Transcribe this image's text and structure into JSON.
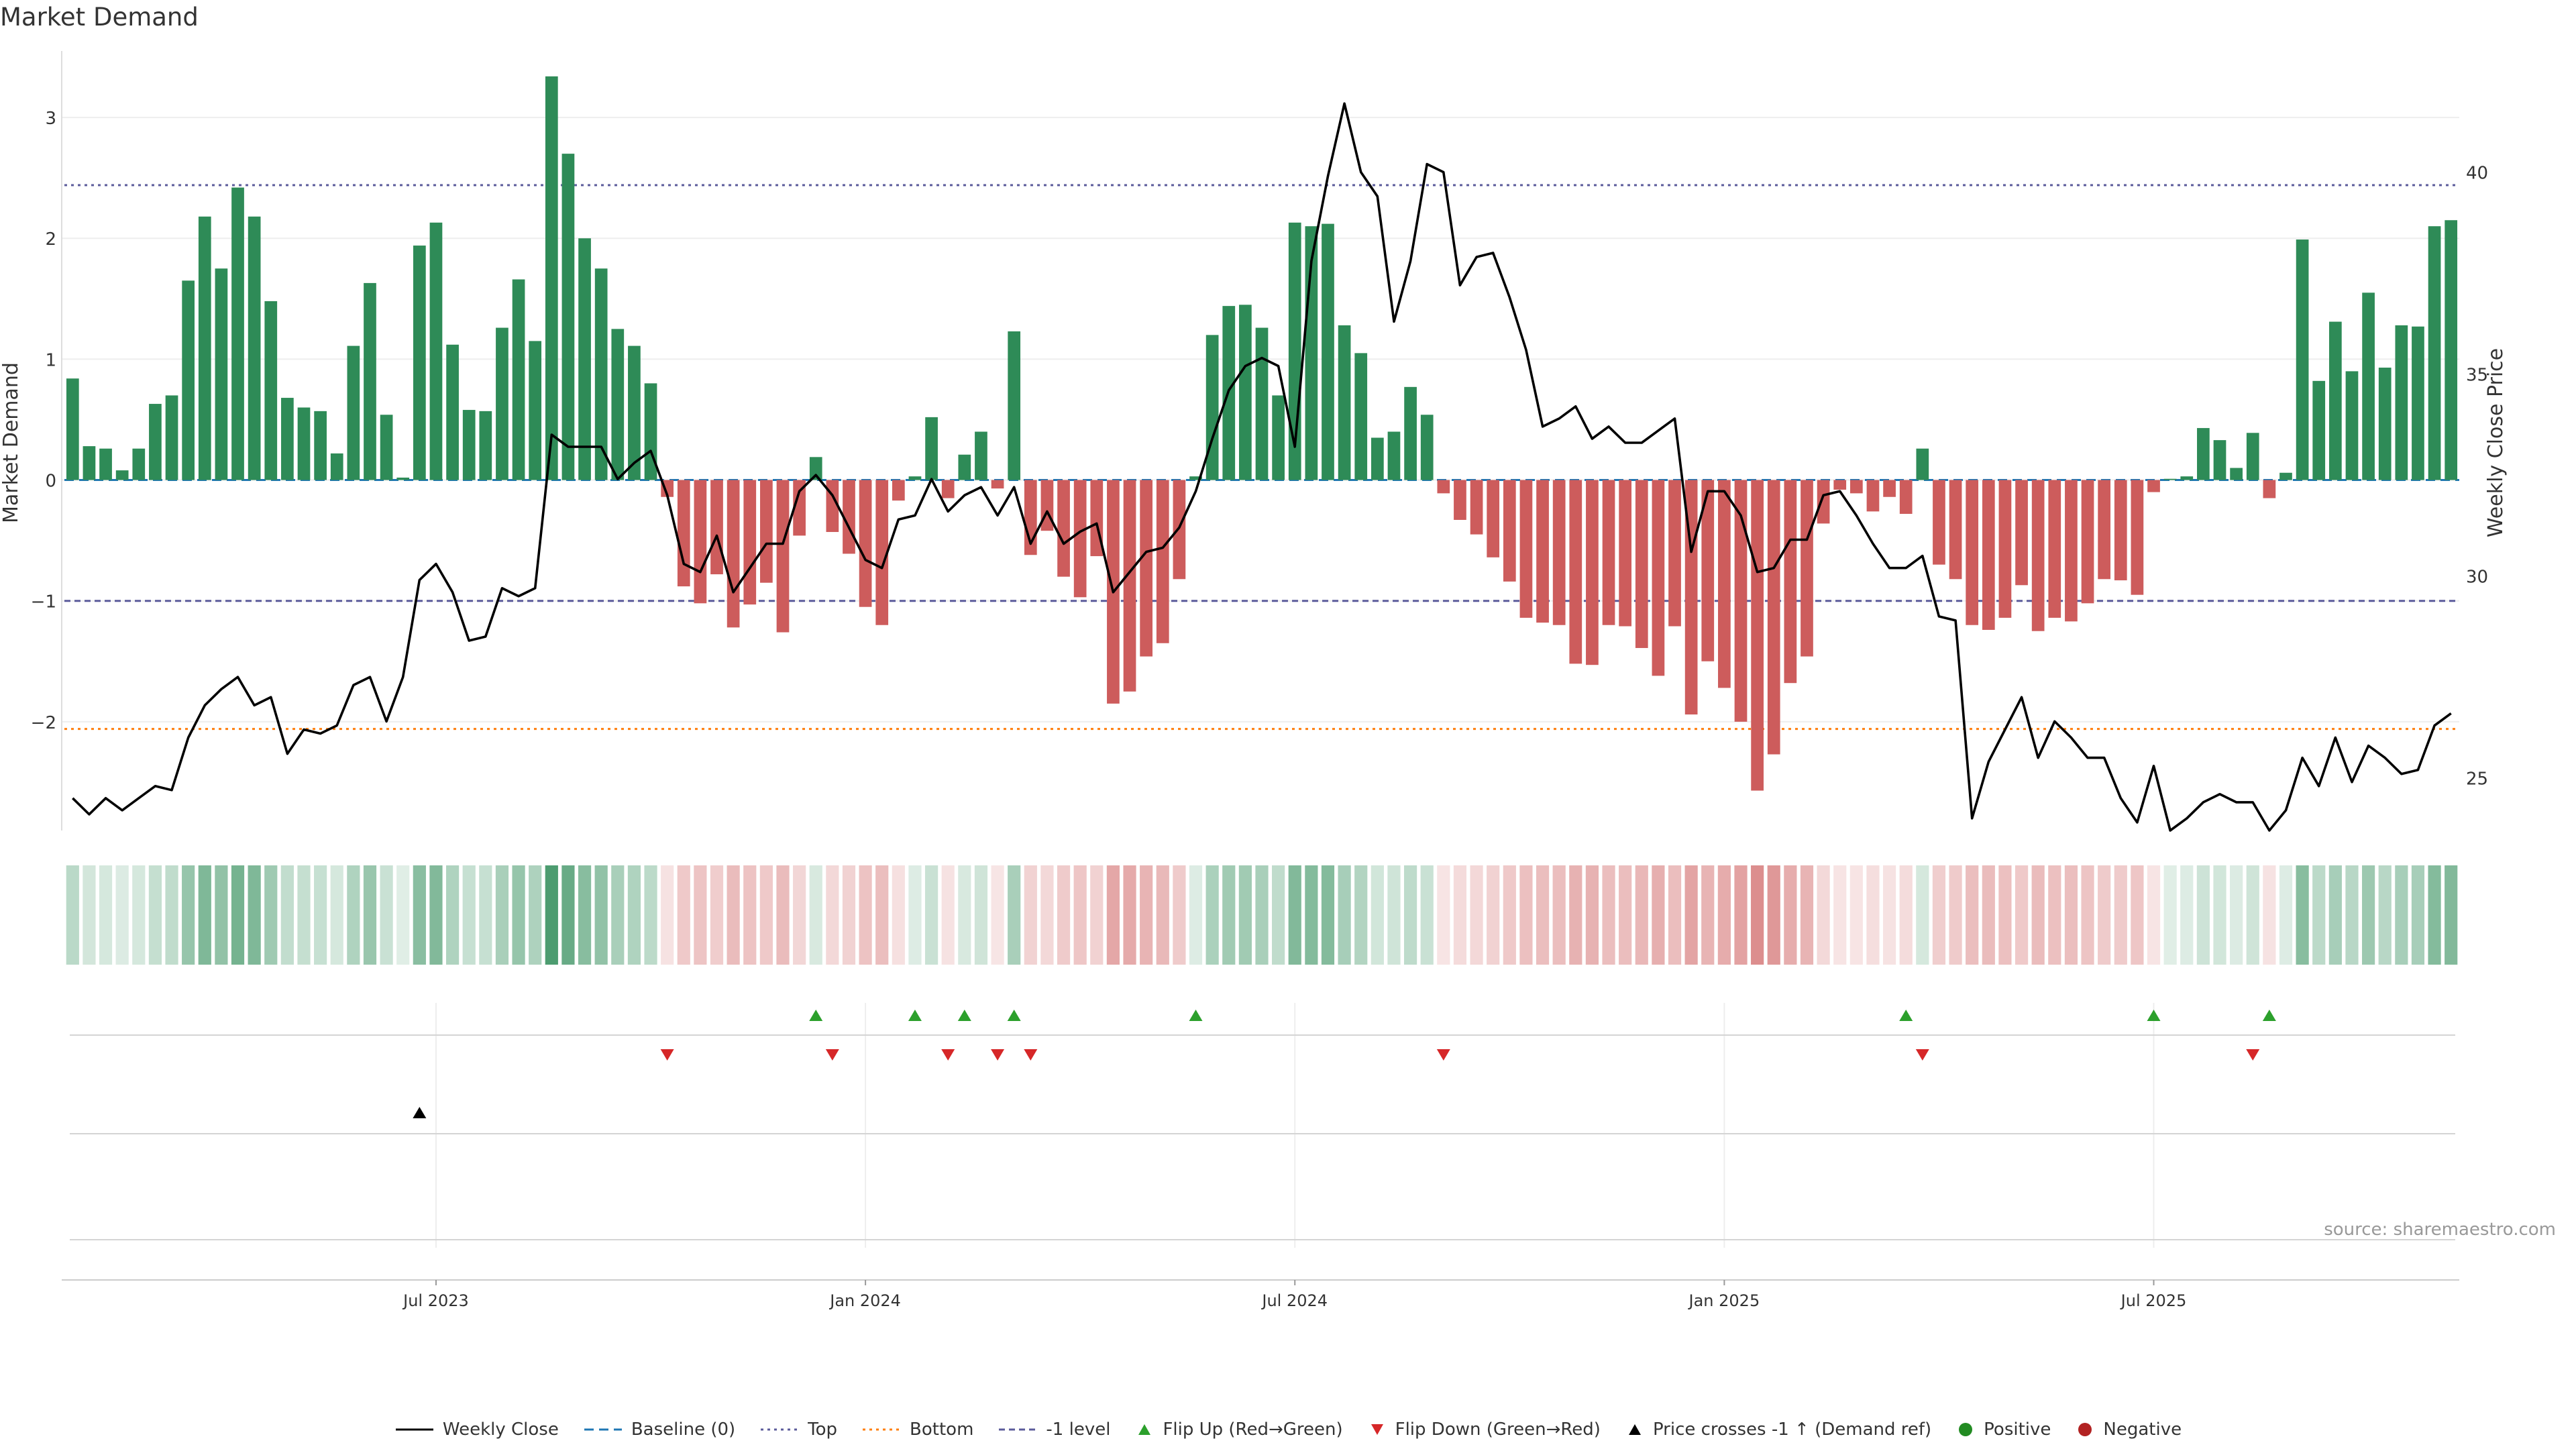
{
  "title": "Market Demand",
  "source": "source: sharemaestro.com",
  "colors": {
    "positive": "#2e8b57",
    "negative": "#cd5c5c",
    "price": "#000000",
    "baseline": "#1f77b4",
    "top": "#5b5b9b",
    "bottom": "#ff7f0e",
    "minus1": "#5b5b9b",
    "flip_up": "#2ca02c",
    "flip_down": "#d62728",
    "dot_positive": "#228b22",
    "dot_negative": "#b22222"
  },
  "chart_data": {
    "type": "bar",
    "title": "Market Demand",
    "ylabel": "Market Demand",
    "y2label": "Weekly Close Price",
    "ylim": [
      -2.9,
      3.55
    ],
    "y2lim": [
      23.7,
      43.0
    ],
    "yticks": [
      3,
      2,
      1,
      0,
      -1,
      -2
    ],
    "ytick_labels": [
      "3",
      "2",
      "1",
      "0",
      "−1",
      "−2"
    ],
    "y2ticks": [
      40,
      35,
      30,
      25
    ],
    "y2tick_labels": [
      "40",
      "35",
      "30",
      "25"
    ],
    "xticks": [
      22,
      48,
      74,
      100,
      126
    ],
    "xtick_labels": [
      "Jul 2023",
      "Jan 2024",
      "Jul 2024",
      "Jan 2025",
      "Jul 2025"
    ],
    "reference_lines": {
      "top": 2.44,
      "bottom": -2.06,
      "minus1": -1.0,
      "baseline": 0
    },
    "demand": [
      0.84,
      0.28,
      0.26,
      0.08,
      0.26,
      0.63,
      0.7,
      1.65,
      2.18,
      1.75,
      2.42,
      2.18,
      1.48,
      0.68,
      0.6,
      0.57,
      0.22,
      1.11,
      1.63,
      0.54,
      0.02,
      1.94,
      2.13,
      1.12,
      0.58,
      0.57,
      1.26,
      1.66,
      1.15,
      3.34,
      2.7,
      2.0,
      1.75,
      1.25,
      1.11,
      0.8,
      -0.14,
      -0.88,
      -1.02,
      -0.78,
      -1.22,
      -1.03,
      -0.85,
      -1.26,
      -0.46,
      0.19,
      -0.43,
      -0.61,
      -1.05,
      -1.2,
      -0.17,
      0.03,
      0.52,
      -0.15,
      0.21,
      0.4,
      -0.07,
      1.23,
      -0.62,
      -0.42,
      -0.8,
      -0.97,
      -0.63,
      -1.85,
      -1.75,
      -1.46,
      -1.35,
      -0.82,
      0.03,
      1.2,
      1.44,
      1.45,
      1.26,
      0.7,
      2.13,
      2.1,
      2.12,
      1.28,
      1.05,
      0.35,
      0.4,
      0.77,
      0.54,
      -0.11,
      -0.33,
      -0.45,
      -0.64,
      -0.84,
      -1.14,
      -1.18,
      -1.2,
      -1.52,
      -1.53,
      -1.2,
      -1.21,
      -1.39,
      -1.62,
      -1.21,
      -1.94,
      -1.5,
      -1.72,
      -2.0,
      -2.57,
      -2.27,
      -1.68,
      -1.46,
      -0.36,
      -0.08,
      -0.11,
      -0.26,
      -0.14,
      -0.28,
      0.26,
      -0.7,
      -0.82,
      -1.2,
      -1.24,
      -1.14,
      -0.87,
      -1.25,
      -1.14,
      -1.17,
      -1.02,
      -0.82,
      -0.83,
      -0.95,
      -0.1,
      0.01,
      0.03,
      0.43,
      0.33,
      0.1,
      0.39,
      -0.15,
      0.06,
      1.99,
      0.82,
      1.31,
      0.9,
      1.55,
      0.93,
      1.28,
      1.27,
      2.1,
      2.15
    ],
    "price": [
      24.5,
      24.1,
      24.5,
      24.2,
      24.5,
      24.8,
      24.7,
      26.0,
      26.8,
      27.2,
      27.5,
      26.8,
      27.0,
      25.6,
      26.2,
      26.1,
      26.3,
      27.3,
      27.5,
      26.4,
      27.5,
      29.9,
      30.3,
      29.6,
      28.4,
      28.5,
      29.7,
      29.5,
      29.7,
      33.5,
      33.2,
      33.2,
      33.2,
      32.4,
      32.8,
      33.1,
      32.0,
      30.3,
      30.1,
      31.0,
      29.6,
      30.2,
      30.8,
      30.8,
      32.1,
      32.5,
      32.0,
      31.2,
      30.4,
      30.2,
      31.4,
      31.5,
      32.4,
      31.6,
      32.0,
      32.2,
      31.5,
      32.2,
      30.8,
      31.6,
      30.8,
      31.1,
      31.3,
      29.6,
      30.1,
      30.6,
      30.7,
      31.2,
      32.1,
      33.4,
      34.6,
      35.2,
      35.4,
      35.2,
      33.2,
      37.8,
      39.9,
      41.7,
      40.0,
      39.4,
      36.3,
      37.8,
      40.2,
      40.0,
      37.2,
      37.9,
      38.0,
      36.9,
      35.6,
      33.7,
      33.9,
      34.2,
      33.4,
      33.7,
      33.3,
      33.3,
      33.6,
      33.9,
      30.6,
      32.1,
      32.1,
      31.5,
      30.1,
      30.2,
      30.9,
      30.9,
      32.0,
      32.1,
      31.5,
      30.8,
      30.2,
      30.2,
      30.5,
      29.0,
      28.9,
      24.0,
      25.4,
      26.2,
      27.0,
      25.5,
      26.4,
      26.0,
      25.5,
      25.5,
      24.5,
      23.9,
      25.3,
      23.7,
      24.0,
      24.4,
      24.6,
      24.4,
      24.4,
      23.7,
      24.2,
      25.5,
      24.8,
      26.0,
      24.9,
      25.8,
      25.5,
      25.1,
      25.2,
      26.3,
      26.6
    ],
    "flip_up_weeks": [
      45,
      51,
      54,
      57,
      68,
      111,
      126,
      133
    ],
    "flip_down_weeks": [
      36,
      46,
      53,
      56,
      58,
      83,
      112,
      132
    ],
    "price_cross_weeks": [
      21
    ],
    "legend": [
      "Weekly Close",
      "Baseline (0)",
      "Top",
      "Bottom",
      "-1 level",
      "Flip Up (Red→Green)",
      "Flip Down (Green→Red)",
      "Price crosses -1 ↑ (Demand ref)",
      "Positive",
      "Negative"
    ]
  }
}
